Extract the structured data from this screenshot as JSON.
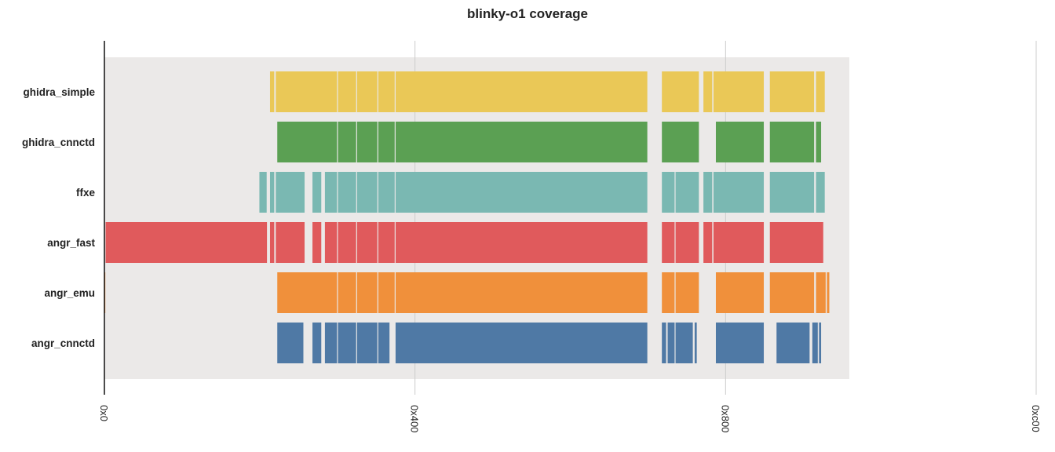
{
  "chart_data": {
    "type": "bar",
    "subtype": "horizontal-coverage-ranges",
    "title": "blinky-o1 coverage",
    "xlabel": "",
    "ylabel": "",
    "x_ticks": [
      {
        "value": 0,
        "label": "0x0"
      },
      {
        "value": 1024,
        "label": "0x400"
      },
      {
        "value": 2048,
        "label": "0x800"
      },
      {
        "value": 3072,
        "label": "0xc00"
      }
    ],
    "xlim": [
      0,
      3072
    ],
    "address_range": [
      0,
      2456
    ],
    "grid": true,
    "background_color": "#ebe9e8",
    "series": [
      {
        "name": "ghidra_simple",
        "color": "#eac857",
        "segments": [
          [
            546,
            560
          ],
          [
            565,
            767
          ],
          [
            770,
            830
          ],
          [
            833,
            900
          ],
          [
            903,
            957
          ],
          [
            960,
            1790
          ],
          [
            1838,
            1960
          ],
          [
            1975,
            2004
          ],
          [
            2008,
            2174
          ],
          [
            2194,
            2340
          ],
          [
            2346,
            2375
          ]
        ]
      },
      {
        "name": "ghidra_cnnctd",
        "color": "#5ba053",
        "segments": [
          [
            570,
            767
          ],
          [
            770,
            830
          ],
          [
            833,
            900
          ],
          [
            903,
            957
          ],
          [
            960,
            1790
          ],
          [
            1838,
            1960
          ],
          [
            2016,
            2174
          ],
          [
            2194,
            2340
          ],
          [
            2346,
            2363
          ]
        ]
      },
      {
        "name": "ffxe",
        "color": "#7ab8b2",
        "segments": [
          [
            511,
            535
          ],
          [
            546,
            560
          ],
          [
            565,
            660
          ],
          [
            686,
            715
          ],
          [
            727,
            767
          ],
          [
            770,
            830
          ],
          [
            833,
            900
          ],
          [
            903,
            957
          ],
          [
            960,
            1790
          ],
          [
            1838,
            1880
          ],
          [
            1883,
            1960
          ],
          [
            1975,
            2004
          ],
          [
            2008,
            2174
          ],
          [
            2194,
            2340
          ],
          [
            2346,
            2375
          ]
        ]
      },
      {
        "name": "angr_fast",
        "color": "#e05a5c",
        "segments": [
          [
            4,
            536
          ],
          [
            546,
            560
          ],
          [
            565,
            660
          ],
          [
            686,
            715
          ],
          [
            727,
            767
          ],
          [
            770,
            830
          ],
          [
            833,
            900
          ],
          [
            903,
            957
          ],
          [
            960,
            1790
          ],
          [
            1838,
            1880
          ],
          [
            1883,
            1960
          ],
          [
            1975,
            2004
          ],
          [
            2008,
            2174
          ],
          [
            2194,
            2370
          ]
        ]
      },
      {
        "name": "angr_emu",
        "color": "#f0903b",
        "segments": [
          [
            0,
            3
          ],
          [
            570,
            767
          ],
          [
            770,
            830
          ],
          [
            833,
            900
          ],
          [
            903,
            957
          ],
          [
            960,
            1790
          ],
          [
            1838,
            1880
          ],
          [
            1883,
            1960
          ],
          [
            2016,
            2174
          ],
          [
            2194,
            2340
          ],
          [
            2346,
            2378
          ],
          [
            2382,
            2390
          ]
        ]
      },
      {
        "name": "angr_cnnctd",
        "color": "#4f79a5",
        "segments": [
          [
            570,
            656
          ],
          [
            686,
            715
          ],
          [
            727,
            767
          ],
          [
            770,
            830
          ],
          [
            833,
            900
          ],
          [
            903,
            940
          ],
          [
            960,
            1790
          ],
          [
            1838,
            1852
          ],
          [
            1857,
            1880
          ],
          [
            1883,
            1940
          ],
          [
            1946,
            1953
          ],
          [
            2016,
            2174
          ],
          [
            2216,
            2325
          ],
          [
            2334,
            2352
          ],
          [
            2356,
            2363
          ]
        ]
      }
    ]
  }
}
